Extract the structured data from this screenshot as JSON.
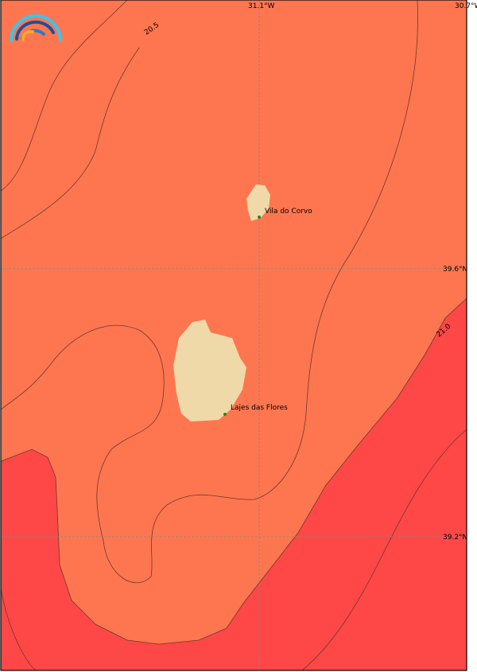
{
  "map": {
    "colors": {
      "warm": "#fe7650",
      "hot": "#fe4747",
      "land": "#efd9a8",
      "contour": "#6b3a2a",
      "grid": "#888888",
      "place": "#1e8c1e"
    },
    "grid_labels": {
      "lon_1": "31.1°W",
      "lon_2": "30.7°W",
      "lat_1": "39.6°N",
      "lat_2": "39.2°N"
    },
    "contour_labels": {
      "c1": "20.5",
      "c2": "21.0"
    },
    "places": [
      {
        "name": "Vila do Corvo"
      },
      {
        "name": "Lajes das Flores"
      }
    ],
    "logo": "rainbow-logo"
  }
}
